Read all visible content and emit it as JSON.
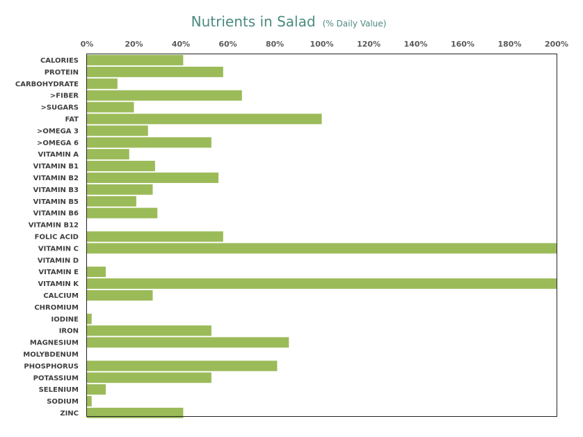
{
  "chart_data": {
    "type": "bar",
    "orientation": "horizontal",
    "title": "Nutrients in Salad",
    "subtitle": "(% Daily Value)",
    "xlabel": "",
    "ylabel": "",
    "xlim": [
      0,
      200
    ],
    "x_ticks": [
      "0%",
      "20%",
      "40%",
      "60%",
      "80%",
      "100%",
      "120%",
      "140%",
      "160%",
      "180%",
      "200%"
    ],
    "x_axis_position": "top",
    "grid": false,
    "legend": "none",
    "bar_color": "#9bbb59",
    "categories": [
      "CALORIES",
      "PROTEIN",
      "CARBOHYDRATE",
      ">FIBER",
      ">SUGARS",
      "FAT",
      ">OMEGA 3",
      ">OMEGA 6",
      "VITAMIN A",
      "VITAMIN B1",
      "VITAMIN B2",
      "VITAMIN B3",
      "VITAMIN B5",
      "VITAMIN B6",
      "VITAMIN B12",
      "FOLIC ACID",
      "VITAMIN C",
      "VITAMIN D",
      "VITAMIN E",
      "VITAMIN K",
      "CALCIUM",
      "CHROMIUM",
      "IODINE",
      "IRON",
      "MAGNESIUM",
      "MOLYBDENUM",
      "PHOSPHORUS",
      "POTASSIUM",
      "SELENIUM",
      "SODIUM",
      "ZINC"
    ],
    "values": [
      41,
      58,
      13,
      66,
      20,
      100,
      26,
      53,
      18,
      29,
      56,
      28,
      21,
      30,
      0,
      58,
      200,
      0,
      8,
      200,
      28,
      0,
      2,
      53,
      86,
      0,
      81,
      53,
      8,
      2,
      41
    ]
  }
}
